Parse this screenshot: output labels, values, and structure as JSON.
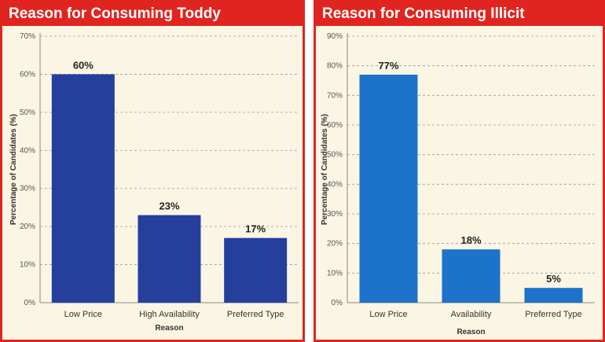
{
  "chart_data": [
    {
      "type": "bar",
      "title": "Reason for Consuming Toddy",
      "categories": [
        "Low Price",
        "High Availability",
        "Preferred Type"
      ],
      "values": [
        60,
        23,
        17
      ],
      "value_labels": [
        "60%",
        "23%",
        "17%"
      ],
      "xlabel": "Reason",
      "ylabel": "Percentage of Candidates (%)",
      "ylim": [
        0,
        70
      ],
      "yticks": [
        0,
        10,
        20,
        30,
        40,
        50,
        60,
        70
      ],
      "ytick_labels": [
        "0%",
        "10%",
        "20%",
        "30%",
        "40%",
        "50%",
        "60%",
        "70%"
      ],
      "grid": true,
      "legend": "none",
      "bar_color": "#263f9c"
    },
    {
      "type": "bar",
      "title": "Reason for Consuming Illicit",
      "categories": [
        "Low Price",
        "Availability",
        "Preferred Type"
      ],
      "values": [
        77,
        18,
        5
      ],
      "value_labels": [
        "77%",
        "18%",
        "5%"
      ],
      "xlabel": "Reason",
      "ylabel": "Percentage of Candidates (%)",
      "ylim": [
        0,
        90
      ],
      "yticks": [
        0,
        10,
        20,
        30,
        40,
        50,
        60,
        70,
        80,
        90
      ],
      "ytick_labels": [
        "0%",
        "10%",
        "20%",
        "30%",
        "40%",
        "50%",
        "60%",
        "70%",
        "80%",
        "90%"
      ],
      "grid": true,
      "legend": "none",
      "bar_color": "#1d72c9"
    }
  ],
  "colors": {
    "header_background": "#e0241f",
    "panel_background": "#fbf6e4",
    "gridline": "#999999"
  }
}
